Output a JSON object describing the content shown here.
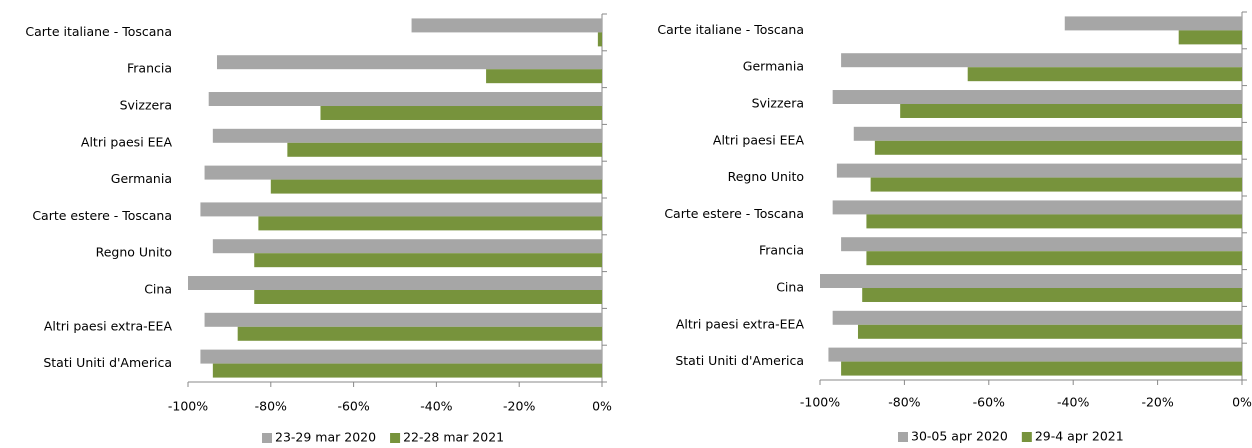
{
  "chart_data": [
    {
      "type": "bar",
      "orientation": "horizontal",
      "categories": [
        "Carte italiane - Toscana",
        "Francia",
        "Svizzera",
        "Altri paesi EEA",
        "Germania",
        "Carte estere - Toscana",
        "Regno Unito",
        "Cina",
        "Altri paesi extra-EEA",
        "Stati Uniti d'America"
      ],
      "series": [
        {
          "name": "23-29 mar 2020",
          "color": "#a6a6a6",
          "values": [
            -46,
            -93,
            -95,
            -94,
            -96,
            -97,
            -94,
            -100,
            -96,
            -97
          ]
        },
        {
          "name": "22-28 mar 2021",
          "color": "#77933c",
          "values": [
            -1,
            -28,
            -68,
            -76,
            -80,
            -83,
            -84,
            -84,
            -88,
            -94
          ]
        }
      ],
      "xlim": [
        -100,
        0
      ],
      "xticks": [
        {
          "value": -100,
          "label": "-100%"
        },
        {
          "value": -80,
          "label": "-80%"
        },
        {
          "value": -60,
          "label": "-60%"
        },
        {
          "value": -40,
          "label": "-40%"
        },
        {
          "value": -20,
          "label": "-20%"
        },
        {
          "value": 0,
          "label": "0%"
        }
      ],
      "grid": false,
      "legend": "bottom"
    },
    {
      "type": "bar",
      "orientation": "horizontal",
      "categories": [
        "Carte italiane - Toscana",
        "Germania",
        "Svizzera",
        "Altri paesi EEA",
        "Regno Unito",
        "Carte estere - Toscana",
        "Francia",
        "Cina",
        "Altri paesi extra-EEA",
        "Stati Uniti d'America"
      ],
      "series": [
        {
          "name": "30-05 apr 2020",
          "color": "#a6a6a6",
          "values": [
            -42,
            -95,
            -97,
            -92,
            -96,
            -97,
            -95,
            -100,
            -97,
            -98
          ]
        },
        {
          "name": "29-4 apr 2021",
          "color": "#77933c",
          "values": [
            -15,
            -65,
            -81,
            -87,
            -88,
            -89,
            -89,
            -90,
            -91,
            -95
          ]
        }
      ],
      "xlim": [
        -100,
        0
      ],
      "xticks": [
        {
          "value": -100,
          "label": "-100%"
        },
        {
          "value": -80,
          "label": "-80%"
        },
        {
          "value": -60,
          "label": "-60%"
        },
        {
          "value": -40,
          "label": "-40%"
        },
        {
          "value": -20,
          "label": "-20%"
        },
        {
          "value": 0,
          "label": "0%"
        }
      ],
      "grid": false,
      "legend": "bottom"
    }
  ]
}
